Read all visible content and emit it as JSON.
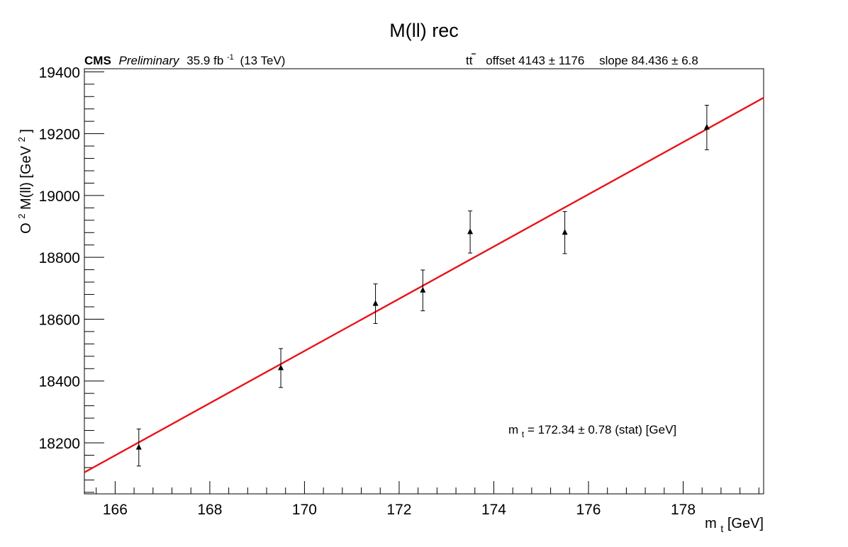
{
  "chart_data": {
    "type": "scatter",
    "title": "M(ll) rec",
    "header": {
      "experiment": "CMS",
      "status": "Preliminary",
      "lumi_value": "35.9 fb",
      "lumi_exp": "-1",
      "energy": "(13 TeV)",
      "process": "tt",
      "fit_offset": "offset 4143 ± 1176",
      "fit_slope": "slope 84.436 ± 6.8"
    },
    "xlabel": {
      "base": "m",
      "sub": "t",
      "rest": " [GeV]"
    },
    "ylabel": {
      "pre": "O",
      "sup1": "2",
      "mid": " M(ll) [GeV",
      "sup2": "2",
      "post": "]"
    },
    "xlim": [
      165.35,
      179.7
    ],
    "ylim": [
      18035,
      19410
    ],
    "x_ticks": [
      166,
      168,
      170,
      172,
      174,
      176,
      178
    ],
    "y_ticks": [
      18200,
      18400,
      18600,
      18800,
      19000,
      19200,
      19400
    ],
    "points": [
      {
        "x": 166.5,
        "y": 18185,
        "err": 60
      },
      {
        "x": 169.5,
        "y": 18442,
        "err": 63
      },
      {
        "x": 171.5,
        "y": 18650,
        "err": 64
      },
      {
        "x": 172.5,
        "y": 18693,
        "err": 66
      },
      {
        "x": 173.5,
        "y": 18882,
        "err": 68
      },
      {
        "x": 175.5,
        "y": 18880,
        "err": 68
      },
      {
        "x": 178.5,
        "y": 19220,
        "err": 72
      }
    ],
    "fit": {
      "offset": 4143,
      "slope": 84.436,
      "color": "#e8141a"
    },
    "annotation": {
      "base": "m",
      "sub": "t",
      "rest": " = 172.34 ± 0.78 (stat) [GeV]"
    },
    "grid": false,
    "legend": "none"
  }
}
